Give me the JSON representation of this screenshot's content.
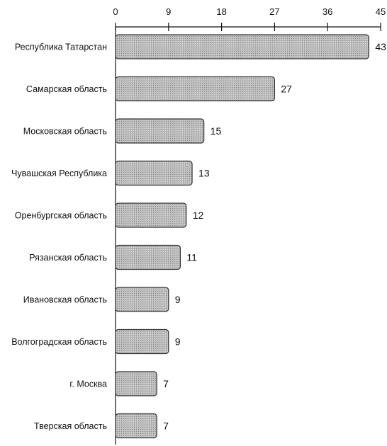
{
  "chart_data": {
    "type": "bar",
    "orientation": "horizontal",
    "categories": [
      "Республика Татарстан",
      "Самарская область",
      "Московская область",
      "Чувашская Республика",
      "Оренбургская область",
      "Рязанская область",
      "Ивановская область",
      "Волгоградская область",
      "г. Москва",
      "Тверская область"
    ],
    "values": [
      43,
      27,
      15,
      13,
      12,
      11,
      9,
      9,
      7,
      7
    ],
    "xlim": [
      0,
      45
    ],
    "xticks": [
      0,
      9,
      18,
      27,
      36,
      45
    ],
    "xaxis_position": "top",
    "grid": false,
    "data_labels": true,
    "title": "",
    "xlabel": "",
    "ylabel": "",
    "colors": {
      "bar_fill": "#b8b8b8",
      "bar_stroke": "#333333",
      "axis": "#111111"
    }
  }
}
